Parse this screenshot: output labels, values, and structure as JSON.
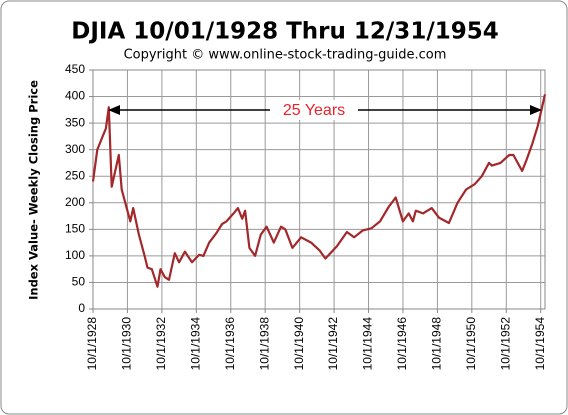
{
  "chart_data": {
    "type": "line",
    "title": "DJIA 10/01/1928  Thru 12/31/1954",
    "subtitle": "Copyright © www.online-stock-trading-guide.com",
    "y_label": "Index Value- Weekly Closing Price",
    "annotation": "25 Years",
    "x": [
      "1928-10-01",
      "1929-01-01",
      "1929-04-01",
      "1929-07-01",
      "1929-09-01",
      "1929-11-01",
      "1930-04-01",
      "1930-06-01",
      "1930-10-01",
      "1930-12-01",
      "1931-02-01",
      "1931-06-01",
      "1931-10-01",
      "1931-12-01",
      "1932-03-01",
      "1932-07-01",
      "1932-09-01",
      "1932-12-01",
      "1933-03-01",
      "1933-07-01",
      "1933-10-01",
      "1934-02-01",
      "1934-07-01",
      "1934-12-01",
      "1935-03-01",
      "1935-07-01",
      "1935-12-01",
      "1936-04-01",
      "1936-07-01",
      "1936-12-01",
      "1937-03-01",
      "1937-06-01",
      "1937-08-01",
      "1937-11-01",
      "1938-03-01",
      "1938-07-01",
      "1938-11-01",
      "1939-04-01",
      "1939-09-01",
      "1939-12-01",
      "1940-05-01",
      "1940-11-01",
      "1941-06-01",
      "1941-12-01",
      "1942-04-01",
      "1942-12-01",
      "1943-07-01",
      "1943-12-01",
      "1944-06-01",
      "1944-12-01",
      "1945-06-01",
      "1945-12-01",
      "1946-05-01",
      "1946-10-01",
      "1947-02-01",
      "1947-05-01",
      "1947-07-01",
      "1947-12-01",
      "1948-06-01",
      "1948-11-01",
      "1949-06-01",
      "1949-12-01",
      "1950-06-01",
      "1950-12-01",
      "1951-05-01",
      "1951-10-01",
      "1951-12-01",
      "1952-06-01",
      "1952-12-01",
      "1953-03-01",
      "1953-09-01",
      "1953-12-01",
      "1954-04-01",
      "1954-08-01",
      "1954-12-31"
    ],
    "series": [
      {
        "color": "#a3282b",
        "values": [
          240,
          300,
          320,
          340,
          380,
          230,
          290,
          225,
          185,
          165,
          190,
          140,
          100,
          78,
          75,
          42,
          75,
          60,
          55,
          105,
          88,
          108,
          88,
          102,
          100,
          125,
          143,
          160,
          165,
          180,
          190,
          170,
          185,
          115,
          100,
          140,
          155,
          125,
          155,
          150,
          115,
          135,
          125,
          110,
          95,
          118,
          145,
          135,
          148,
          152,
          165,
          192,
          210,
          165,
          180,
          165,
          185,
          180,
          190,
          172,
          162,
          200,
          225,
          235,
          250,
          275,
          270,
          275,
          290,
          290,
          260,
          280,
          310,
          345,
          404
        ]
      }
    ],
    "xlim": [
      "1928-10-01",
      "1954-12-31"
    ],
    "xticks": [
      {
        "value": "1928-10-01",
        "label": "10/1/1928"
      },
      {
        "value": "1930-10-01",
        "label": "10/1/1930"
      },
      {
        "value": "1932-10-01",
        "label": "10/1/1932"
      },
      {
        "value": "1934-10-01",
        "label": "10/1/1934"
      },
      {
        "value": "1936-10-01",
        "label": "10/1/1936"
      },
      {
        "value": "1938-10-01",
        "label": "10/1/1938"
      },
      {
        "value": "1940-10-01",
        "label": "10/1/1940"
      },
      {
        "value": "1942-10-01",
        "label": "10/1/1942"
      },
      {
        "value": "1944-10-01",
        "label": "10/1/1944"
      },
      {
        "value": "1946-10-01",
        "label": "10/1/1946"
      },
      {
        "value": "1948-10-01",
        "label": "10/1/1948"
      },
      {
        "value": "1950-10-01",
        "label": "10/1/1950"
      },
      {
        "value": "1952-10-01",
        "label": "10/1/1952"
      },
      {
        "value": "1954-10-01",
        "label": "10/1/1954"
      }
    ],
    "ylim": [
      0,
      450
    ],
    "yticks": [
      0,
      50,
      100,
      150,
      200,
      250,
      300,
      350,
      400,
      450
    ],
    "grid": true
  }
}
